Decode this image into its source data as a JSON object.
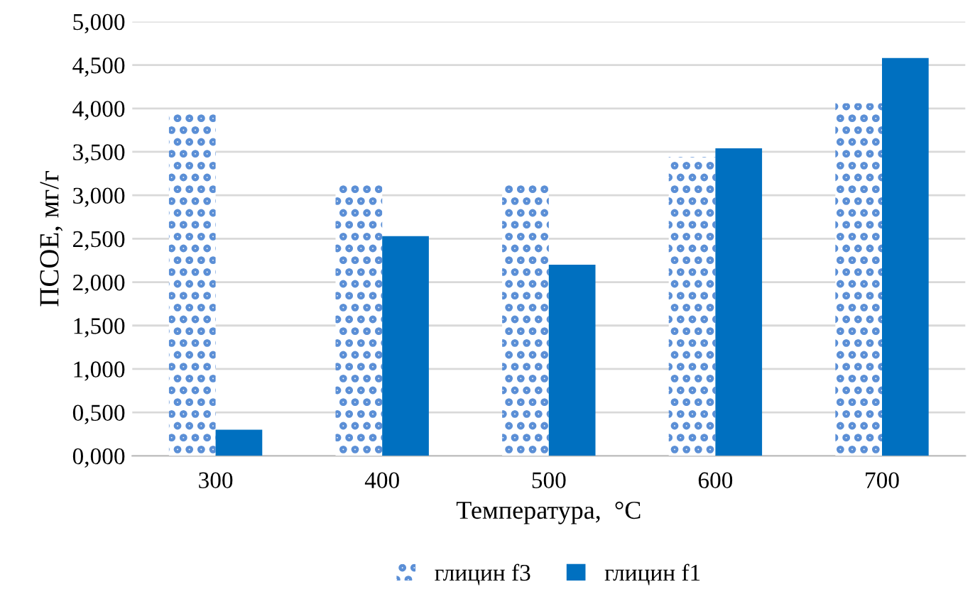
{
  "chart_data": {
    "type": "bar",
    "xlabel": "Температура,  °C",
    "ylabel": "ПСОЕ, мг/г",
    "categories": [
      "300",
      "400",
      "500",
      "600",
      "700"
    ],
    "series": [
      {
        "name": "глицин f3",
        "color": "#5b8fd6",
        "values": [
          3.95,
          3.12,
          3.15,
          3.44,
          4.06
        ]
      },
      {
        "name": "глицин f1",
        "color": "#0070c0",
        "values": [
          0.3,
          2.53,
          2.2,
          3.54,
          4.58
        ]
      }
    ],
    "ylim": [
      0,
      5
    ],
    "yticks": [
      {
        "value": 0,
        "label": "0,000"
      },
      {
        "value": 0.5,
        "label": "0,500"
      },
      {
        "value": 1,
        "label": "1,000"
      },
      {
        "value": 1.5,
        "label": "1,500"
      },
      {
        "value": 2,
        "label": "2,000"
      },
      {
        "value": 2.5,
        "label": "2,500"
      },
      {
        "value": 3,
        "label": "3,000"
      },
      {
        "value": 3.5,
        "label": "3,500"
      },
      {
        "value": 4,
        "label": "4,000"
      },
      {
        "value": 4.5,
        "label": "4,500"
      },
      {
        "value": 5,
        "label": "5,000"
      }
    ],
    "grid": "y",
    "legend": "bottom"
  }
}
